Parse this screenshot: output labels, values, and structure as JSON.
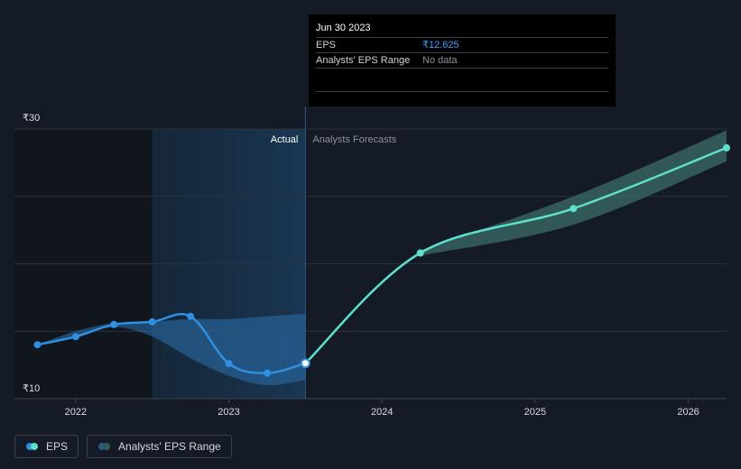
{
  "tooltip": {
    "date": "Jun 30 2023",
    "eps_label": "EPS",
    "eps_value": "₹12.625",
    "range_label": "Analysts' EPS Range",
    "range_value": "No data"
  },
  "legend": {
    "eps": "EPS",
    "range": "Analysts' EPS Range"
  },
  "colors": {
    "background": "#151b26",
    "actual_line": "#2f8fe0",
    "forecast_line": "#5ee0cf",
    "actual_band": "#2a6aa5",
    "forecast_band": "#3b6e68",
    "highlight": "#1a3550"
  },
  "chart_data": {
    "type": "line",
    "y_tick_labels": [
      "₹30",
      "₹10"
    ],
    "ylim": [
      10,
      30
    ],
    "xlim": [
      2021.6,
      2026.25
    ],
    "x_tick_labels": [
      "2022",
      "2023",
      "2024",
      "2025",
      "2026"
    ],
    "x_ticks": [
      2022,
      2023,
      2024,
      2025,
      2026
    ],
    "divider_x": 2023.5,
    "highlight_start": 2022.5,
    "actual_label": "Actual",
    "forecast_label": "Analysts Forecasts",
    "series": [
      {
        "name": "EPS (Actual)",
        "x": [
          2021.75,
          2022.0,
          2022.25,
          2022.5,
          2022.75,
          2023.0,
          2023.25,
          2023.5
        ],
        "y": [
          14.0,
          14.6,
          15.5,
          15.7,
          16.1,
          12.6,
          11.9,
          12.625
        ]
      },
      {
        "name": "EPS (Forecast)",
        "x": [
          2023.5,
          2024.25,
          2025.25,
          2026.25
        ],
        "y": [
          12.625,
          20.8,
          24.1,
          28.6
        ]
      }
    ],
    "actual_range": {
      "x": [
        2021.75,
        2022.0,
        2022.25,
        2022.5,
        2022.75,
        2023.0,
        2023.25,
        2023.5
      ],
      "low": [
        14.0,
        14.6,
        15.3,
        14.6,
        13.0,
        11.7,
        11.0,
        11.4
      ],
      "high": [
        14.0,
        15.0,
        15.6,
        15.7,
        15.9,
        15.9,
        16.1,
        16.3
      ]
    },
    "forecast_range": {
      "x": [
        2024.25,
        2025.25,
        2026.25
      ],
      "low": [
        20.6,
        22.9,
        27.6
      ],
      "high": [
        21.0,
        25.0,
        29.9
      ]
    }
  }
}
